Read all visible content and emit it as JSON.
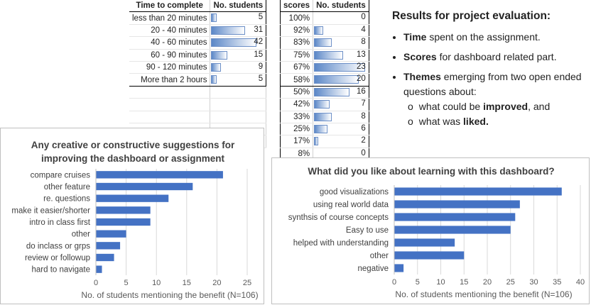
{
  "time_table": {
    "headers": [
      "Time to complete",
      "No. students"
    ],
    "rows": [
      {
        "label": "less than 20 minutes",
        "value": 5
      },
      {
        "label": "20 - 40 minutes",
        "value": 31
      },
      {
        "label": "40 - 60 minutes",
        "value": 42
      },
      {
        "label": "60 - 90 minutes",
        "value": 15
      },
      {
        "label": "90 - 120 minutes",
        "value": 9
      },
      {
        "label": "More than 2 hours",
        "value": 5
      }
    ]
  },
  "scores_table": {
    "headers": [
      "scores",
      "No. students"
    ],
    "rows": [
      {
        "label": "100%",
        "value": 0
      },
      {
        "label": "92%",
        "value": 4
      },
      {
        "label": "83%",
        "value": 8
      },
      {
        "label": "75%",
        "value": 13
      },
      {
        "label": "67%",
        "value": 23
      },
      {
        "label": "58%",
        "value": 20
      },
      {
        "label": "50%",
        "value": 16
      },
      {
        "label": "42%",
        "value": 7
      },
      {
        "label": "33%",
        "value": 8
      },
      {
        "label": "25%",
        "value": 6
      },
      {
        "label": "17%",
        "value": 2
      },
      {
        "label": "8%",
        "value": 0
      }
    ]
  },
  "notes": {
    "title": "Results for project evaluation:",
    "b1_bold": "Time",
    "b1_rest": " spent on the assignment.",
    "b2_bold": "Scores",
    "b2_rest": " for dashboard related part.",
    "b3_bold": "Themes",
    "b3_rest": " emerging from two open ended questions about:",
    "s1_pre": "what could be ",
    "s1_bold": "improved",
    "s1_post": ", and",
    "s2_pre": "what was ",
    "s2_bold": "liked."
  },
  "chart_data": [
    {
      "type": "bar",
      "orientation": "horizontal",
      "title": "Any creative or constructive suggestions for improving the dashboard or assignment",
      "title_line1": "Any creative or constructive suggestions for",
      "title_line2": "improving the dashboard  or assignment",
      "xlabel": "No. of students mentioning the benefit (N=106)",
      "xlim": [
        0,
        25
      ],
      "xticks": [
        0,
        5,
        10,
        15,
        20,
        25
      ],
      "categories": [
        "compare cruises",
        "other feature",
        "re. questions",
        "make it easier/shorter",
        "intro in class first",
        "other",
        "do inclass or grps",
        "review or followup",
        "hard to navigate"
      ],
      "values": [
        21,
        16,
        12,
        9,
        9,
        5,
        4,
        3,
        1
      ],
      "color": "#4472c4"
    },
    {
      "type": "bar",
      "orientation": "horizontal",
      "title": "What did you like about learning with this dashboard?",
      "xlabel": "No. of students mentioning the benefit (N=106)",
      "xlim": [
        0,
        40
      ],
      "xticks": [
        0,
        5,
        10,
        15,
        20,
        25,
        30,
        35,
        40
      ],
      "categories": [
        "good visualizations",
        "using real world data",
        "synthsis of course concepts",
        "Easy to use",
        "helped with understanding",
        "other",
        "negative"
      ],
      "values": [
        36,
        27,
        26,
        25,
        13,
        15,
        2
      ],
      "color": "#4472c4"
    }
  ]
}
